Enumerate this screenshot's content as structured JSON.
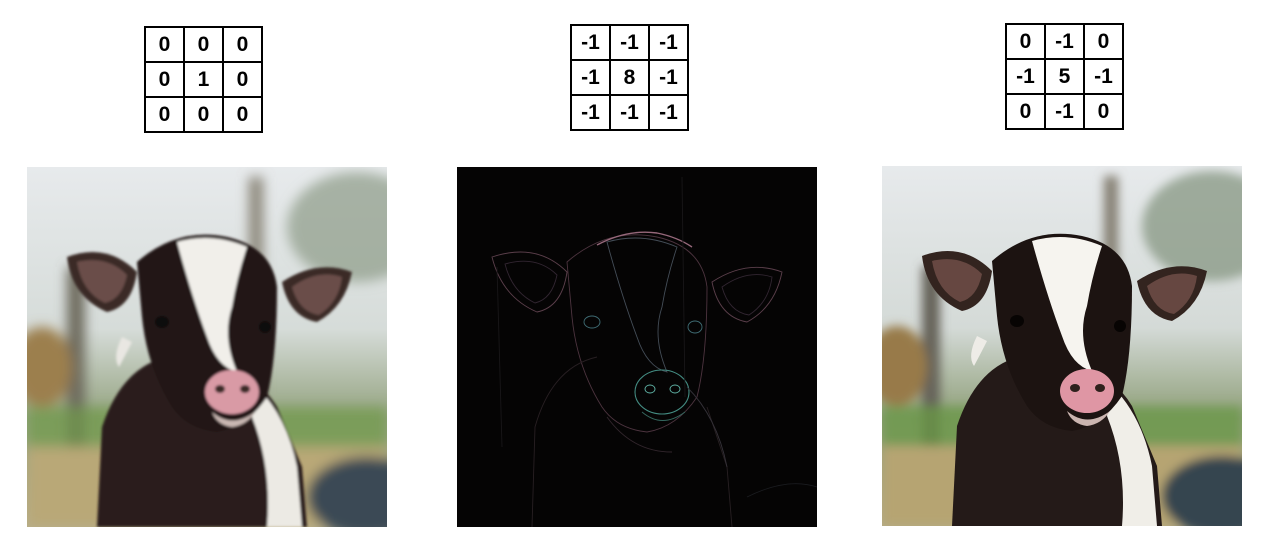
{
  "kernels": {
    "identity": [
      [
        "0",
        "0",
        "0"
      ],
      [
        "0",
        "1",
        "0"
      ],
      [
        "0",
        "0",
        "0"
      ]
    ],
    "edge_detect": [
      [
        "-1",
        "-1",
        "-1"
      ],
      [
        "-1",
        "8",
        "-1"
      ],
      [
        "-1",
        "-1",
        "-1"
      ]
    ],
    "sharpen": [
      [
        "0",
        "-1",
        "0"
      ],
      [
        "-1",
        "5",
        "-1"
      ],
      [
        "0",
        "-1",
        "0"
      ]
    ]
  },
  "images": {
    "original": "calf-photo-original",
    "edge_detect": "calf-photo-edge-detected",
    "sharpen": "calf-photo-sharpened"
  },
  "colors": {
    "sky": "#dfe3e6",
    "foliage": "#7d8f6a",
    "grass": "#6f9a4a",
    "calf_dark": "#2a1e1c",
    "calf_white": "#f1efea",
    "nose_pink": "#d99aa5",
    "edge_background": "#050404"
  }
}
